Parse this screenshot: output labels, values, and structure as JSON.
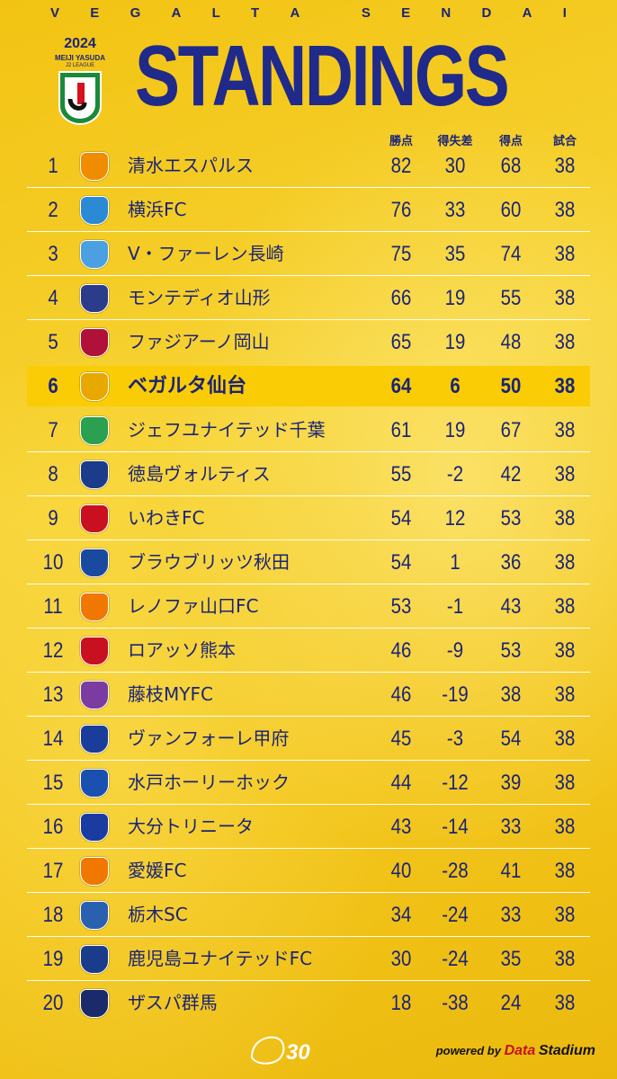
{
  "brand_letters": [
    "V",
    "E",
    "G",
    "A",
    "L",
    "T",
    "A",
    " ",
    "S",
    "E",
    "N",
    "D",
    "A",
    "I"
  ],
  "logo": {
    "year": "2024",
    "line1": "MEIJI YASUDA",
    "line2": "J2 LEAGUE"
  },
  "title": "STANDINGS",
  "headers": {
    "points": "勝点",
    "goal_diff": "得失差",
    "goals": "得点",
    "matches": "試合"
  },
  "colors": {
    "navy": "#1a2478",
    "highlight": "#f9cc05",
    "background": "#f5cb22"
  },
  "rows": [
    {
      "rank": "1",
      "team": "清水エスパルス",
      "pts": "82",
      "gd": "30",
      "gf": "68",
      "mp": "38",
      "crest": "#f08c00"
    },
    {
      "rank": "2",
      "team": "横浜FC",
      "pts": "76",
      "gd": "33",
      "gf": "60",
      "mp": "38",
      "crest": "#2a8ad6"
    },
    {
      "rank": "3",
      "team": "V・ファーレン長崎",
      "pts": "75",
      "gd": "35",
      "gf": "74",
      "mp": "38",
      "crest": "#4aa0e0"
    },
    {
      "rank": "4",
      "team": "モンテディオ山形",
      "pts": "66",
      "gd": "19",
      "gf": "55",
      "mp": "38",
      "crest": "#2a3c8a"
    },
    {
      "rank": "5",
      "team": "ファジアーノ岡山",
      "pts": "65",
      "gd": "19",
      "gf": "48",
      "mp": "38",
      "crest": "#b0103a"
    },
    {
      "rank": "6",
      "team": "ベガルタ仙台",
      "pts": "64",
      "gd": "6",
      "gf": "50",
      "mp": "38",
      "crest": "#e8a800",
      "highlight": true
    },
    {
      "rank": "7",
      "team": "ジェフユナイテッド千葉",
      "pts": "61",
      "gd": "19",
      "gf": "67",
      "mp": "38",
      "crest": "#2aa050"
    },
    {
      "rank": "8",
      "team": "徳島ヴォルティス",
      "pts": "55",
      "gd": "-2",
      "gf": "42",
      "mp": "38",
      "crest": "#1a3c8a"
    },
    {
      "rank": "9",
      "team": "いわきFC",
      "pts": "54",
      "gd": "12",
      "gf": "53",
      "mp": "38",
      "crest": "#c81020"
    },
    {
      "rank": "10",
      "team": "ブラウブリッツ秋田",
      "pts": "54",
      "gd": "1",
      "gf": "36",
      "mp": "38",
      "crest": "#1a4aa0"
    },
    {
      "rank": "11",
      "team": "レノファ山口FC",
      "pts": "53",
      "gd": "-1",
      "gf": "43",
      "mp": "38",
      "crest": "#f07800"
    },
    {
      "rank": "12",
      "team": "ロアッソ熊本",
      "pts": "46",
      "gd": "-9",
      "gf": "53",
      "mp": "38",
      "crest": "#c81020"
    },
    {
      "rank": "13",
      "team": "藤枝MYFC",
      "pts": "46",
      "gd": "-19",
      "gf": "38",
      "mp": "38",
      "crest": "#7a3ca0"
    },
    {
      "rank": "14",
      "team": "ヴァンフォーレ甲府",
      "pts": "45",
      "gd": "-3",
      "gf": "54",
      "mp": "38",
      "crest": "#1a3c9a"
    },
    {
      "rank": "15",
      "team": "水戸ホーリーホック",
      "pts": "44",
      "gd": "-12",
      "gf": "39",
      "mp": "38",
      "crest": "#1a50b0"
    },
    {
      "rank": "16",
      "team": "大分トリニータ",
      "pts": "43",
      "gd": "-14",
      "gf": "33",
      "mp": "38",
      "crest": "#1a3ca0"
    },
    {
      "rank": "17",
      "team": "愛媛FC",
      "pts": "40",
      "gd": "-28",
      "gf": "41",
      "mp": "38",
      "crest": "#f07800"
    },
    {
      "rank": "18",
      "team": "栃木SC",
      "pts": "34",
      "gd": "-24",
      "gf": "33",
      "mp": "38",
      "crest": "#2a60b0"
    },
    {
      "rank": "19",
      "team": "鹿児島ユナイテッドFC",
      "pts": "30",
      "gd": "-24",
      "gf": "35",
      "mp": "38",
      "crest": "#1a3c8a"
    },
    {
      "rank": "20",
      "team": "ザスパ群馬",
      "pts": "18",
      "gd": "-38",
      "gf": "24",
      "mp": "38",
      "crest": "#1a2a6a"
    }
  ],
  "footer": {
    "anniversary": "30",
    "powered_by": "powered by",
    "data_stadium_a": "Data",
    "data_stadium_b": "Stadium"
  }
}
